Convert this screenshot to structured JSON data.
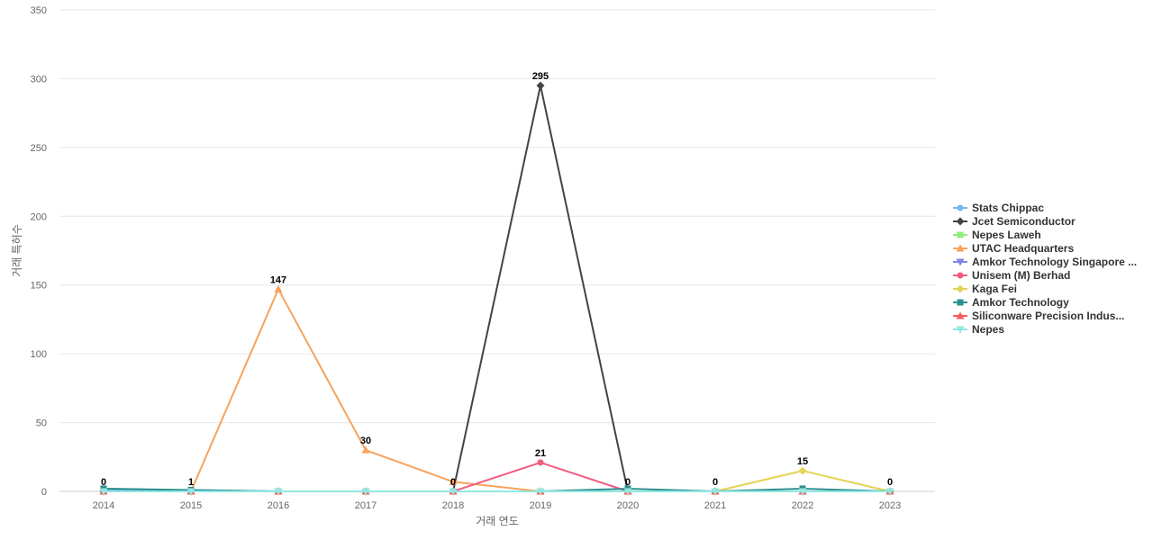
{
  "chart_data": {
    "type": "line",
    "title": "",
    "xlabel": "거래 연도",
    "ylabel": "거래 특허수",
    "ylim": [
      0,
      350
    ],
    "yticks": [
      0,
      50,
      100,
      150,
      200,
      250,
      300,
      350
    ],
    "grid": true,
    "legend_position": "right",
    "categories": [
      "2014",
      "2015",
      "2016",
      "2017",
      "2018",
      "2019",
      "2020",
      "2021",
      "2022",
      "2023"
    ],
    "series": [
      {
        "name": "Stats Chippac",
        "color": "#7cb5ec",
        "marker": "circle",
        "values": [
          1,
          1,
          0,
          0,
          0,
          0,
          0,
          0,
          0,
          0
        ]
      },
      {
        "name": "Jcet Semiconductor",
        "color": "#434348",
        "marker": "diamond",
        "values": [
          0,
          0,
          0,
          0,
          0,
          295,
          0,
          0,
          0,
          0
        ]
      },
      {
        "name": "Nepes Laweh",
        "color": "#90ed7d",
        "marker": "square",
        "values": [
          0,
          0,
          0,
          0,
          0,
          0,
          0,
          0,
          0,
          0
        ]
      },
      {
        "name": "UTAC Headquarters",
        "color": "#f7a35c",
        "marker": "triangle",
        "values": [
          0,
          0,
          147,
          30,
          7,
          0,
          0,
          0,
          0,
          0
        ]
      },
      {
        "name": "Amkor Technology Singapore ...",
        "color": "#8085e9",
        "marker": "triangle-down",
        "values": [
          0,
          0,
          0,
          0,
          0,
          0,
          0,
          0,
          0,
          0
        ]
      },
      {
        "name": "Unisem (M) Berhad",
        "color": "#f15c80",
        "marker": "circle",
        "values": [
          0,
          0,
          0,
          0,
          0,
          21,
          0,
          0,
          0,
          0
        ]
      },
      {
        "name": "Kaga Fei",
        "color": "#e4d354",
        "marker": "diamond",
        "values": [
          0,
          0,
          0,
          0,
          0,
          0,
          0,
          0,
          15,
          0
        ]
      },
      {
        "name": "Amkor Technology",
        "color": "#2b908f",
        "marker": "square",
        "values": [
          2,
          1,
          0,
          0,
          0,
          0,
          2,
          0,
          2,
          0
        ]
      },
      {
        "name": "Siliconware Precision Indus...",
        "color": "#f45b5b",
        "marker": "triangle",
        "values": [
          0,
          0,
          0,
          0,
          0,
          0,
          0,
          0,
          0,
          0
        ]
      },
      {
        "name": "Nepes",
        "color": "#91e8e1",
        "marker": "triangle-down",
        "values": [
          0,
          0,
          0,
          0,
          0,
          0,
          0,
          0,
          0,
          0
        ]
      }
    ],
    "data_labels": [
      "0",
      "1",
      "147",
      "30",
      "0",
      "295",
      "0",
      "0",
      "15",
      "0",
      "21"
    ]
  }
}
